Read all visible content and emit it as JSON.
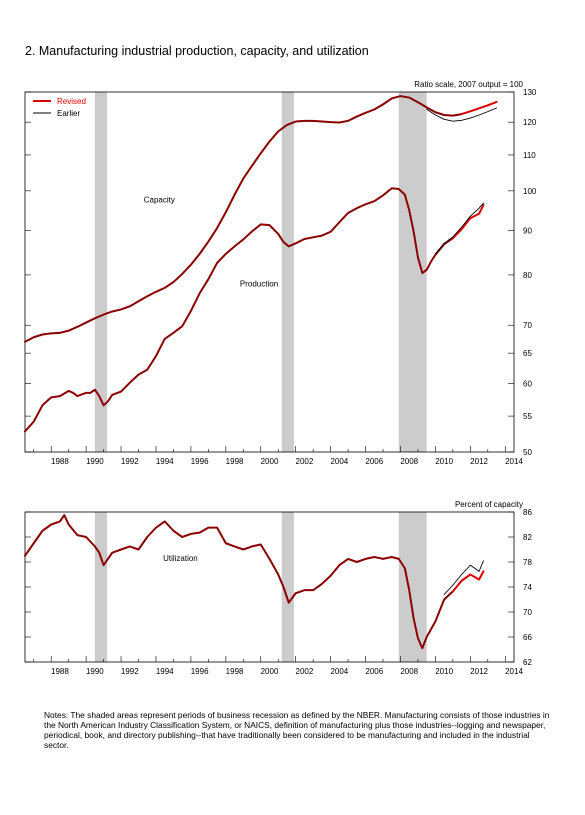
{
  "title": "2. Manufacturing industrial production, capacity, and utilization",
  "notes": "Notes: The shaded areas represent periods of business recession as defined by the NBER. Manufacturing consists of those industries in the North American Industry Classification System, or NAICS, definition of manufacturing plus those industries--logging and newspaper, periodical, book, and directory  publishing--that have traditionally been considered to be manufacturing and included in the industrial sector.",
  "colors": {
    "revised": "#dd0000",
    "earlier": "#000000",
    "history": "#8b0000",
    "recession": "#cccccc"
  },
  "recessions": [
    [
      1990.5,
      1991.2
    ],
    [
      2001.2,
      2001.9
    ],
    [
      2007.9,
      2009.5
    ]
  ],
  "chart_data": [
    {
      "type": "line",
      "title": "",
      "ylabel": "Ratio scale, 2007 output = 100",
      "scale": "log",
      "xlim": [
        1986.5,
        2014.5
      ],
      "ylim": [
        50,
        130
      ],
      "x_ticks": [
        "1988",
        "1990",
        "1992",
        "1994",
        "1996",
        "1998",
        "2000",
        "2002",
        "2004",
        "2006",
        "2008",
        "2010",
        "2012",
        "2014"
      ],
      "y_ticks": [
        "50",
        "55",
        "60",
        "65",
        "70",
        "80",
        "90",
        "100",
        "110",
        "120",
        "130"
      ],
      "legend": {
        "position": "top-left",
        "entries": [
          "Revised",
          "Earlier"
        ]
      },
      "annotations": [
        "Capacity",
        "Production"
      ],
      "series": [
        {
          "name": "Capacity",
          "x": [
            1986.5,
            1987,
            1987.5,
            1988,
            1988.5,
            1989,
            1989.5,
            1990,
            1990.5,
            1991,
            1991.5,
            1992,
            1992.5,
            1993,
            1993.5,
            1994,
            1994.5,
            1995,
            1995.5,
            1996,
            1996.5,
            1997,
            1997.5,
            1998,
            1998.5,
            1999,
            1999.5,
            2000,
            2000.5,
            2001,
            2001.5,
            2002,
            2002.5,
            2003,
            2003.5,
            2004,
            2004.5,
            2005,
            2005.5,
            2006,
            2006.5,
            2007,
            2007.5,
            2008,
            2008.5,
            2009,
            2009.5,
            2010,
            2010.5,
            2011,
            2011.5
          ],
          "y": [
            67,
            67.8,
            68.3,
            68.5,
            68.6,
            69,
            69.7,
            70.5,
            71.3,
            72,
            72.6,
            73,
            73.6,
            74.6,
            75.6,
            76.5,
            77.3,
            78.5,
            80.2,
            82.2,
            84.6,
            87.4,
            90.6,
            94.5,
            99,
            103.3,
            106.9,
            110.5,
            114,
            117.1,
            119.1,
            120.2,
            120.4,
            120.4,
            120.2,
            120,
            119.9,
            120.4,
            121.8,
            123,
            124.1,
            125.8,
            127.8,
            128.6,
            128.1,
            126.5,
            124.8,
            123.2,
            122.3,
            122.1,
            122.6
          ]
        },
        {
          "name": "Capacity (Revised)",
          "x": [
            2011.5,
            2012,
            2012.5,
            2013,
            2013.5
          ],
          "y": [
            122.6,
            123.5,
            124.5,
            125.5,
            126.6
          ]
        },
        {
          "name": "Capacity (Earlier)",
          "x": [
            2009.5,
            2010,
            2010.5,
            2011,
            2011.5,
            2012,
            2012.5,
            2013,
            2013.5
          ],
          "y": [
            124.2,
            122.3,
            120.9,
            120.3,
            120.6,
            121.3,
            122.3,
            123.4,
            124.6
          ]
        },
        {
          "name": "Production",
          "x": [
            1986.5,
            1987,
            1987.5,
            1988,
            1988.5,
            1989,
            1989.25,
            1989.5,
            1990,
            1990.25,
            1990.5,
            1990.75,
            1991,
            1991.25,
            1991.5,
            1992,
            1992.5,
            1993,
            1993.5,
            1994,
            1994.5,
            1995,
            1995.5,
            1996,
            1996.5,
            1997,
            1997.5,
            1998,
            1998.5,
            1999,
            1999.5,
            2000,
            2000.5,
            2001,
            2001.3,
            2001.6,
            2002,
            2002.5,
            2003,
            2003.5,
            2004,
            2004.5,
            2005,
            2005.5,
            2006,
            2006.5,
            2007,
            2007.5,
            2007.9,
            2008.25,
            2008.5,
            2008.75,
            2009,
            2009.25,
            2009.5,
            2009.75,
            2010,
            2010.5,
            2011
          ],
          "y": [
            52.8,
            54.2,
            56.6,
            57.8,
            58,
            58.8,
            58.5,
            58,
            58.5,
            58.5,
            59,
            58,
            56.6,
            57.2,
            58.2,
            58.7,
            60.1,
            61.4,
            62.2,
            64.5,
            67.5,
            68.6,
            69.8,
            72.7,
            76.2,
            79.1,
            82.6,
            84.6,
            86.3,
            87.9,
            89.8,
            91.5,
            91.3,
            89.2,
            87.3,
            86.3,
            87,
            88,
            88.4,
            88.8,
            89.7,
            92,
            94.3,
            95.5,
            96.5,
            97.3,
            98.8,
            100.7,
            100.5,
            99,
            95,
            89.8,
            83.8,
            80.4,
            81.1,
            82.9,
            84.4,
            86.8,
            88.2
          ]
        },
        {
          "name": "Production (Revised)",
          "x": [
            2011,
            2011.5,
            2012,
            2012.5,
            2012.75
          ],
          "y": [
            88.2,
            90.3,
            93,
            94.1,
            96.3
          ]
        },
        {
          "name": "Production (Earlier)",
          "x": [
            2010,
            2010.5,
            2011,
            2011.5,
            2012,
            2012.5,
            2012.75
          ],
          "y": [
            84.6,
            87,
            88.5,
            90.8,
            93.5,
            95.5,
            96.8
          ]
        }
      ]
    },
    {
      "type": "line",
      "title": "",
      "ylabel": "Percent of capacity",
      "xlim": [
        1986.5,
        2014.5
      ],
      "ylim": [
        62,
        86
      ],
      "x_ticks": [
        "1988",
        "1990",
        "1992",
        "1994",
        "1996",
        "1998",
        "2000",
        "2002",
        "2004",
        "2006",
        "2008",
        "2010",
        "2012",
        "2014"
      ],
      "y_ticks": [
        "62",
        "66",
        "70",
        "74",
        "78",
        "82",
        "86"
      ],
      "annotations": [
        "Utilization"
      ],
      "series": [
        {
          "name": "Utilization",
          "x": [
            1986.5,
            1987,
            1987.5,
            1988,
            1988.5,
            1988.75,
            1989,
            1989.5,
            1990,
            1990.5,
            1990.75,
            1991,
            1991.5,
            1992,
            1992.5,
            1993,
            1993.5,
            1994,
            1994.5,
            1995,
            1995.5,
            1996,
            1996.5,
            1997,
            1997.5,
            1998,
            1998.5,
            1999,
            1999.5,
            2000,
            2000.5,
            2001,
            2001.3,
            2001.6,
            2002,
            2002.5,
            2003,
            2003.5,
            2004,
            2004.5,
            2005,
            2005.5,
            2006,
            2006.5,
            2007,
            2007.5,
            2007.9,
            2008.25,
            2008.5,
            2008.75,
            2009,
            2009.25,
            2009.5,
            2010,
            2010.5,
            2011
          ],
          "y": [
            79,
            81,
            83,
            84,
            84.5,
            85.5,
            84,
            82.3,
            82,
            80.5,
            79.5,
            77.5,
            79.5,
            80,
            80.5,
            80,
            82,
            83.5,
            84.5,
            83,
            82,
            82.5,
            82.7,
            83.5,
            83.5,
            81,
            80.5,
            80,
            80.5,
            80.8,
            78.5,
            76,
            74,
            71.5,
            73,
            73.5,
            73.5,
            74.5,
            75.8,
            77.5,
            78.5,
            78,
            78.5,
            78.8,
            78.5,
            78.8,
            78.5,
            77,
            73.5,
            69,
            65.8,
            64.2,
            66,
            68.5,
            72,
            73.3
          ]
        },
        {
          "name": "Utilization (Revised)",
          "x": [
            2011,
            2011.5,
            2012,
            2012.5,
            2012.75
          ],
          "y": [
            73.3,
            75,
            76,
            75.2,
            76.5
          ]
        },
        {
          "name": "Utilization (Earlier)",
          "x": [
            2010.5,
            2011,
            2011.5,
            2012,
            2012.5,
            2012.75
          ],
          "y": [
            72.8,
            74.3,
            76,
            77.5,
            76.5,
            78.2
          ]
        }
      ]
    }
  ]
}
